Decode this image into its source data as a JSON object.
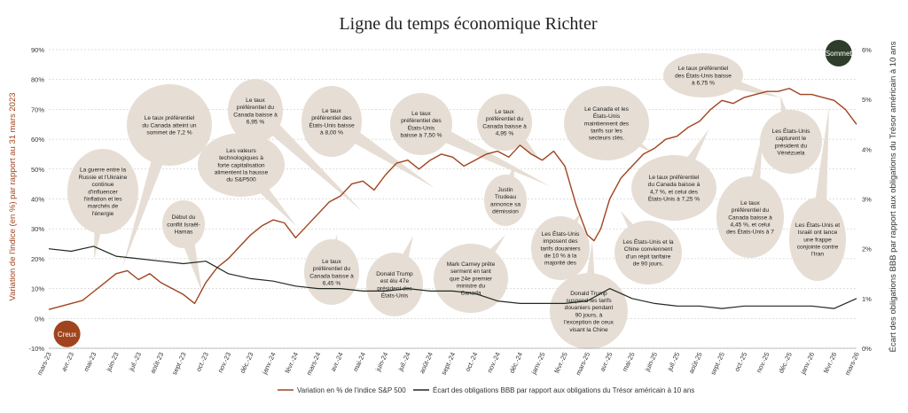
{
  "colors": {
    "sp500": "#a0441f",
    "spread": "#1f2a1f",
    "bubble": "#e6ddd4",
    "trough": "#a0441f",
    "peak": "#2e3d2a",
    "grid": "#bdbdbd"
  },
  "chart_data": {
    "type": "line",
    "title": "Ligne du temps économique Richter",
    "ylabel_left": "Variation de l'indice (en %) par rapport au 31 mars 2023",
    "ylabel_right": "Écart des obligations BBB par rapport aux obligations du Trésor américain à 10 ans",
    "ylim_left": [
      -10,
      90
    ],
    "ylim_right": [
      0,
      6
    ],
    "yticks_left": [
      "-10%",
      "0%",
      "10%",
      "20%",
      "30%",
      "40%",
      "50%",
      "60%",
      "70%",
      "80%",
      "90%"
    ],
    "yticks_right": [
      "0%",
      "1%",
      "2%",
      "3%",
      "4%",
      "5%",
      "6%"
    ],
    "x_ticks": [
      "mars-23",
      "avr.-23",
      "mai-23",
      "juin-23",
      "juil.-23",
      "août-23",
      "sept.-23",
      "oct.-23",
      "nov.-23",
      "déc.-23",
      "janv.-24",
      "févr.-24",
      "mars-24",
      "avr.-24",
      "mai-24",
      "juin-24",
      "juil.-24",
      "août-24",
      "sept.-24",
      "oct.-24",
      "nov.-24",
      "déc.-24",
      "janv.-25",
      "févr.-25",
      "mars-25",
      "avr.-25",
      "mai-25",
      "juin-25",
      "juil.-25",
      "août-25",
      "sept.-25",
      "oct.-25",
      "nov.-25",
      "déc.-25",
      "janv.-26",
      "févr.-26",
      "mars-26"
    ],
    "grid": "horizontal",
    "legend_position": "bottom",
    "series": [
      {
        "name": "Variation en % de l'indice S&P 500",
        "axis": "left",
        "x": [
          0,
          0.5,
          1,
          1.5,
          2,
          2.5,
          3,
          3.5,
          4,
          4.5,
          5,
          5.5,
          6,
          6.5,
          7,
          7.5,
          8,
          8.5,
          9,
          9.5,
          10,
          10.5,
          11,
          11.5,
          12,
          12.5,
          13,
          13.5,
          14,
          14.5,
          15,
          15.5,
          16,
          16.5,
          17,
          17.5,
          18,
          18.5,
          19,
          19.5,
          20,
          20.5,
          21,
          21.5,
          22,
          22.5,
          23,
          23.5,
          24,
          24.3,
          24.6,
          25,
          25.5,
          26,
          26.5,
          27,
          27.5,
          28,
          28.5,
          29,
          29.5,
          30,
          30.5,
          31,
          31.5,
          32,
          32.5,
          33,
          33.5,
          34,
          34.5,
          35,
          35.5,
          36
        ],
        "values": [
          3,
          4,
          5,
          6,
          9,
          12,
          15,
          16,
          13,
          15,
          12,
          10,
          8,
          5,
          12,
          17,
          20,
          24,
          28,
          31,
          33,
          32,
          27,
          31,
          35,
          39,
          41,
          45,
          46,
          43,
          48,
          52,
          53,
          50,
          53,
          55,
          54,
          51,
          53,
          55,
          56,
          54,
          58,
          55,
          53,
          56,
          51,
          38,
          28,
          26,
          30,
          40,
          47,
          51,
          55,
          57,
          60,
          61,
          64,
          66,
          70,
          73,
          72,
          74,
          75,
          76,
          76,
          77,
          75,
          75,
          74,
          73,
          70,
          65
        ]
      },
      {
        "name": "Écart des obligations BBB par rapport aux obligations du Trésor américain à 10 ans",
        "axis": "right",
        "x": [
          0,
          1,
          2,
          3,
          4,
          5,
          6,
          7,
          8,
          9,
          10,
          11,
          12,
          13,
          14,
          15,
          16,
          17,
          18,
          19,
          20,
          21,
          22,
          23,
          24,
          25,
          26,
          27,
          28,
          29,
          30,
          31,
          32,
          33,
          34,
          35,
          36
        ],
        "values": [
          2.0,
          1.95,
          2.05,
          1.85,
          1.8,
          1.75,
          1.7,
          1.75,
          1.5,
          1.4,
          1.35,
          1.25,
          1.2,
          1.2,
          1.15,
          1.15,
          1.2,
          1.15,
          1.15,
          1.1,
          0.95,
          0.9,
          0.9,
          0.9,
          0.95,
          1.2,
          1.0,
          0.9,
          0.85,
          0.85,
          0.8,
          0.85,
          0.85,
          0.85,
          0.85,
          0.8,
          1.0
        ]
      }
    ],
    "annotations": [
      {
        "lines": [
          "La guerre entre la",
          "Russie et l'Ukraine",
          "continue",
          "d'influencer",
          "l'inflation et les",
          "marchés de",
          "l'énergie"
        ]
      },
      {
        "lines": [
          "Le taux préférentiel",
          "du Canada atteint un",
          "sommet de 7,2 %"
        ]
      },
      {
        "lines": [
          "Début du",
          "conflit Israël-",
          "Hamas"
        ]
      },
      {
        "lines": [
          "Les valeurs",
          "technologiques à",
          "forte capitalisation",
          "alimentent la hausse",
          "du S&P500"
        ]
      },
      {
        "lines": [
          "Le taux",
          "préférentiel du",
          "Canada baisse à",
          "6,95 %"
        ]
      },
      {
        "lines": [
          "Le taux",
          "préférentiel du",
          "Canada baisse à",
          "6,45 %"
        ]
      },
      {
        "lines": [
          "Le taux",
          "préférentiel des",
          "États-Unis baisse",
          "à 8,00 %"
        ]
      },
      {
        "lines": [
          "Donald Trump",
          "est élu 47e",
          "président des",
          "États-Unis"
        ]
      },
      {
        "lines": [
          "Le taux",
          "préférentiel des",
          "États-Unis",
          "baisse à 7,50 %"
        ]
      },
      {
        "lines": [
          "Mark Carney prête",
          "serment en tant",
          "que 24e premier",
          "ministre du",
          "Canada"
        ]
      },
      {
        "lines": [
          "Justin",
          "Trudeau",
          "annonce sa",
          "démission"
        ]
      },
      {
        "lines": [
          "Le taux",
          "préférentiel du",
          "Canada baisse à",
          "4,95 %"
        ]
      },
      {
        "lines": [
          "Les États-Unis",
          "imposent des",
          "tarifs douaniers",
          "de 10 % à la",
          "majorité des"
        ]
      },
      {
        "lines": [
          "Le Canada et les",
          "États-Unis",
          "maintiennent des",
          "tarifs sur les",
          "secteurs clés."
        ]
      },
      {
        "lines": [
          "Donald Trump",
          "suspend les tarifs",
          "douaniers pendant",
          "90 jours, à",
          "l'exception de ceux",
          "visant la Chine"
        ]
      },
      {
        "lines": [
          "Les États-Unis et la",
          "Chine conviennent",
          "d'un répit tarifaire",
          "de 90 jours."
        ]
      },
      {
        "lines": [
          "Le taux préférentiel",
          "du Canada baisse à",
          "4,7 %, et celui des",
          "États-Unis à 7,25 %"
        ]
      },
      {
        "lines": [
          "Le taux préférentiel",
          "des États-Unis baisse",
          "à 6,75 %"
        ]
      },
      {
        "lines": [
          "Le taux",
          "préférentiel du",
          "Canada baisse à",
          "4,45 %, et celui",
          "des États-Unis à 7"
        ]
      },
      {
        "lines": [
          "Les États-Unis",
          "capturent le",
          "président du",
          "Vénézuela"
        ]
      },
      {
        "lines": [
          "Les États-Unis et",
          "Israël ont lance",
          "une frappe",
          "conjointe contre",
          "l'Iran"
        ]
      }
    ],
    "markers": [
      {
        "label": "Creux",
        "axis": "left",
        "x": 0.3,
        "y": -4
      },
      {
        "label": "Sommet",
        "axis": "left",
        "x": 35.2,
        "y": 90
      }
    ]
  }
}
